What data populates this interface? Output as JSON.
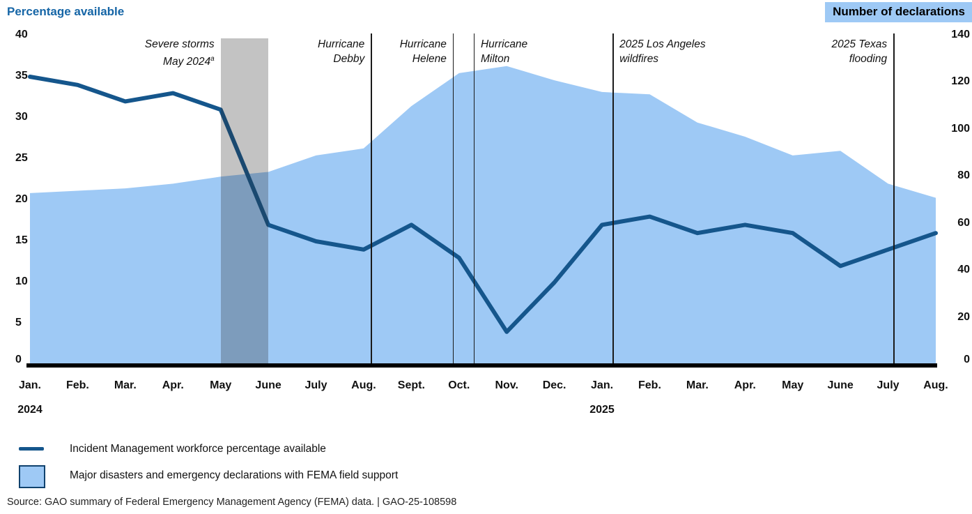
{
  "colors": {
    "line": "#15568C",
    "area": "#9EC9F5",
    "header_box_bg": "#9EC9F5",
    "title_blue": "#1565A6",
    "band": "rgba(40,40,40,0.28)",
    "axis": "#000000"
  },
  "chart_data": {
    "type": "area+line dual-axis time series",
    "x_labels": [
      "Jan.",
      "Feb.",
      "Mar.",
      "Apr.",
      "May",
      "June",
      "July",
      "Aug.",
      "Sept.",
      "Oct.",
      "Nov.",
      "Dec.",
      "Jan.",
      "Feb.",
      "Mar.",
      "Apr.",
      "May",
      "June",
      "July",
      "Aug."
    ],
    "year_labels": [
      {
        "under_index": 0,
        "text": "2024"
      },
      {
        "under_index": 12,
        "text": "2025"
      }
    ],
    "left_axis": {
      "title": "Percentage available",
      "ticks": [
        40,
        35,
        30,
        25,
        20,
        15,
        10,
        5,
        0
      ],
      "min": 0,
      "max": 40
    },
    "right_axis": {
      "title": "Number of declarations",
      "ticks": [
        140,
        120,
        100,
        80,
        60,
        40,
        20,
        0
      ],
      "min": 0,
      "max": 140
    },
    "grid": "off",
    "series": [
      {
        "name": "Incident Management workforce percentage available",
        "type": "line",
        "axis": "left",
        "values": [
          35,
          34,
          32,
          33,
          31,
          17,
          15,
          14,
          17,
          13,
          4,
          10,
          17,
          18,
          16,
          17,
          16,
          12,
          14,
          16
        ]
      },
      {
        "name": "Major disasters and emergency declarations with FEMA field support",
        "type": "area",
        "axis": "right",
        "values": [
          73,
          74,
          75,
          77,
          80,
          82,
          89,
          92,
          110,
          124,
          127,
          121,
          116,
          115,
          103,
          97,
          89,
          91,
          77,
          71
        ]
      }
    ],
    "annotations": [
      {
        "id": "severe-storms",
        "lines": [
          "Severe storms",
          "May 2024"
        ],
        "superscript": "a",
        "marker": "band",
        "band_from_index": 4,
        "band_to_index": 5,
        "text_side": "left"
      },
      {
        "id": "hurricane-debby",
        "lines": [
          "Hurricane",
          "Debby"
        ],
        "marker": "vline",
        "x_index": 7.15,
        "text_side": "left"
      },
      {
        "id": "hurricane-helene",
        "lines": [
          "Hurricane",
          "Helene"
        ],
        "marker": "vline",
        "x_index": 8.87,
        "text_side": "left"
      },
      {
        "id": "hurricane-milton",
        "lines": [
          "Hurricane",
          "Milton"
        ],
        "marker": "vline",
        "x_index": 9.31,
        "text_side": "right"
      },
      {
        "id": "la-wildfires",
        "lines": [
          "2025 Los Angeles",
          "wildfires"
        ],
        "marker": "vline",
        "x_index": 12.22,
        "text_side": "right"
      },
      {
        "id": "texas-flooding",
        "lines": [
          "2025 Texas",
          "flooding"
        ],
        "marker": "vline",
        "x_index": 18.11,
        "text_side": "left"
      }
    ]
  },
  "legend": {
    "items": [
      {
        "swatch": "line",
        "label": "Incident Management workforce percentage available"
      },
      {
        "swatch": "area",
        "label": "Major disasters and emergency declarations with FEMA field support"
      }
    ]
  },
  "source": "Source: GAO summary of Federal Emergency Management Agency (FEMA) data.  |  GAO-25-108598"
}
